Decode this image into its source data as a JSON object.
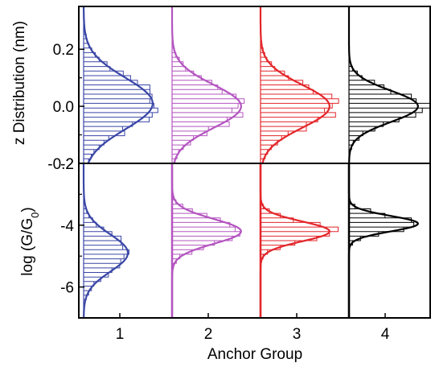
{
  "chart_data": {
    "type": "histogram-panels",
    "xlabel": "Anchor Group",
    "x_ticks": [
      "1",
      "2",
      "3",
      "4"
    ],
    "groups": [
      {
        "name": "1",
        "color": "#3a46a6"
      },
      {
        "name": "2",
        "color": "#b455c0"
      },
      {
        "name": "3",
        "color": "#e3262a"
      },
      {
        "name": "4",
        "color": "#000000"
      }
    ],
    "panels": [
      {
        "ylabel": "z Distribution (nm)",
        "ylim": [
          -0.2,
          0.35
        ],
        "yticks": [
          -0.2,
          0.0,
          0.2
        ],
        "ytick_labels": [
          "-0.2",
          "0.0",
          "0.2"
        ],
        "distributions": [
          {
            "group": "1",
            "center": 0.01,
            "sigma": 0.09,
            "peak": 0.78
          },
          {
            "group": "2",
            "center": 0.0,
            "sigma": 0.075,
            "peak": 0.78
          },
          {
            "group": "3",
            "center": 0.0,
            "sigma": 0.075,
            "peak": 0.78
          },
          {
            "group": "4",
            "center": 0.0,
            "sigma": 0.055,
            "peak": 0.78
          }
        ]
      },
      {
        "ylabel": "log (G/G0)",
        "ylim": [
          -7,
          -2
        ],
        "yticks": [
          -6,
          -4,
          -2
        ],
        "ytick_labels": [
          "-6",
          "-4",
          "-2"
        ],
        "distributions": [
          {
            "group": "1",
            "center": -4.9,
            "sigma": 0.6,
            "peak": 0.5
          },
          {
            "group": "2",
            "center": -4.2,
            "sigma": 0.4,
            "peak": 0.78
          },
          {
            "group": "3",
            "center": -4.2,
            "sigma": 0.32,
            "peak": 0.78
          },
          {
            "group": "4",
            "center": -3.95,
            "sigma": 0.25,
            "peak": 0.78
          }
        ]
      }
    ]
  }
}
